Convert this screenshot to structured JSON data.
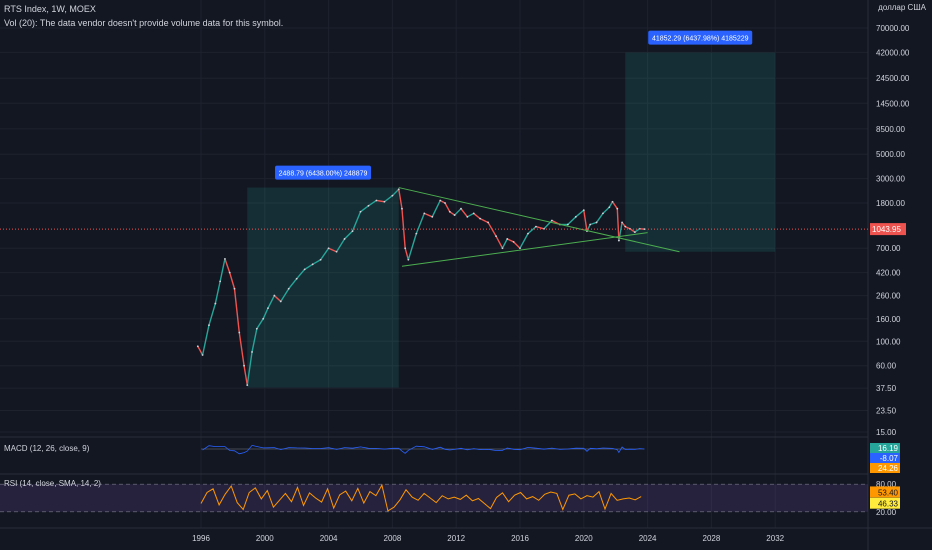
{
  "header": {
    "symbol": "RTS Index, 1W, MOEX",
    "volume_note": "Vol (20): The data vendor doesn't provide volume data for this symbol."
  },
  "price_axis": {
    "currency": "доллар США",
    "ticks": [
      "70000.00",
      "42000.00",
      "24500.00",
      "14500.00",
      "8500.00",
      "5000.00",
      "3000.00",
      "1800.00",
      "1043.95",
      "700.00",
      "420.00",
      "260.00",
      "160.00",
      "100.00",
      "60.00",
      "37.50",
      "23.50",
      "15.00"
    ],
    "last_price": "1043.95"
  },
  "time_axis": {
    "ticks": [
      "1996",
      "2000",
      "2004",
      "2008",
      "2012",
      "2016",
      "2020",
      "2024",
      "2028",
      "2032"
    ]
  },
  "measure_1": {
    "label": "2488.79 (6438.00%) 248879"
  },
  "measure_2": {
    "label": "41852.29 (6437.98%) 4185229"
  },
  "macd": {
    "label": "MACD (12, 26, close, 9)",
    "values": [
      "16.19",
      "-8.07",
      "24.26"
    ]
  },
  "rsi": {
    "label": "RSI (14, close, SMA, 14, 2)",
    "values": [
      "53.40",
      "46.33"
    ],
    "levels": [
      "80.00",
      "20.00"
    ]
  },
  "colors": {
    "background": "#131722",
    "up": "#26a69a",
    "down": "#ef5350",
    "measure_box": "#2962ff",
    "rsi": "#ff9800",
    "rsi_band": "#7e57c2"
  },
  "chart_data": {
    "type": "line",
    "title": "RTS Index, 1W, MOEX",
    "y_scale": "log",
    "y_range": [
      15,
      70000
    ],
    "x_range": [
      1996,
      2033
    ],
    "series": [
      {
        "name": "RTS Index",
        "x": [
          1995.8,
          1996.1,
          1996.5,
          1996.9,
          1997.2,
          1997.5,
          1997.8,
          1998.1,
          1998.4,
          1998.7,
          1998.9,
          1999.2,
          1999.5,
          1999.9,
          2000.2,
          2000.6,
          2001.0,
          2001.5,
          2002.0,
          2002.5,
          2003.0,
          2003.5,
          2004.0,
          2004.5,
          2005.0,
          2005.5,
          2006.0,
          2006.5,
          2007.0,
          2007.5,
          2008.0,
          2008.4,
          2008.6,
          2008.8,
          2009.0,
          2009.5,
          2010.0,
          2010.5,
          2011.0,
          2011.3,
          2011.6,
          2011.9,
          2012.3,
          2012.7,
          2013.1,
          2013.5,
          2014.0,
          2014.5,
          2014.9,
          2015.2,
          2015.6,
          2016.0,
          2016.5,
          2017.0,
          2017.5,
          2018.0,
          2018.5,
          2019.0,
          2019.5,
          2020.0,
          2020.2,
          2020.4,
          2020.8,
          2021.2,
          2021.6,
          2021.8,
          2022.1,
          2022.2,
          2022.4,
          2022.6,
          2022.9,
          2023.2,
          2023.5,
          2023.8
        ],
        "y": [
          90,
          75,
          140,
          220,
          350,
          560,
          420,
          300,
          120,
          60,
          40,
          80,
          130,
          160,
          200,
          260,
          230,
          300,
          370,
          450,
          500,
          550,
          700,
          650,
          850,
          1000,
          1500,
          1700,
          1900,
          1850,
          2100,
          2400,
          1600,
          700,
          550,
          950,
          1450,
          1350,
          1900,
          1800,
          1500,
          1400,
          1600,
          1350,
          1450,
          1300,
          1200,
          900,
          700,
          850,
          800,
          700,
          950,
          1100,
          1050,
          1250,
          1150,
          1150,
          1350,
          1550,
          1000,
          1150,
          1200,
          1450,
          1650,
          1850,
          1600,
          820,
          1200,
          1100,
          1050,
          980,
          1050,
          1044
        ]
      }
    ],
    "measure_boxes": [
      {
        "x_start": 1998.9,
        "x_end": 2008.4,
        "y_start": 38,
        "y_end": 2488.79,
        "label": "2488.79 (6438.00%) 248879"
      },
      {
        "x_start": 2022.6,
        "x_end": 2032.0,
        "y_start": 650,
        "y_end": 41852.29,
        "label": "41852.29 (6437.98%) 4185229"
      }
    ],
    "trendlines": [
      {
        "x": [
          2008.4,
          2026.0
        ],
        "y": [
          2488.79,
          650
        ]
      },
      {
        "x": [
          2008.6,
          2024.0
        ],
        "y": [
          480,
          970
        ]
      }
    ],
    "rsi_range": [
      0,
      100
    ],
    "rsi_series": [
      38,
      62,
      70,
      35,
      58,
      76,
      40,
      25,
      62,
      72,
      48,
      66,
      30,
      45,
      60,
      42,
      73,
      34,
      61,
      50,
      41,
      70,
      28,
      57,
      65,
      44,
      71,
      39,
      64,
      55,
      78,
      22,
      30,
      46,
      68,
      52,
      45,
      60,
      50,
      40,
      55,
      48,
      52,
      47,
      56,
      44,
      49,
      38,
      27,
      51,
      61,
      42,
      56,
      62,
      48,
      53,
      45,
      58,
      63,
      60,
      25,
      56,
      59,
      48,
      55,
      52,
      64,
      26,
      60,
      45,
      48,
      50,
      46,
      53
    ]
  }
}
